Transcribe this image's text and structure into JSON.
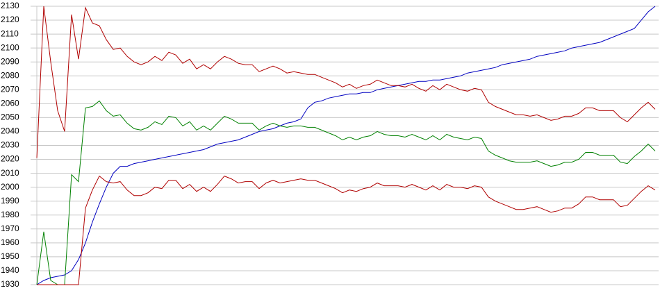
{
  "chart_data": {
    "type": "line",
    "ylim": [
      1930,
      2130
    ],
    "yticks": [
      1930,
      1940,
      1950,
      1960,
      1970,
      1980,
      1990,
      2000,
      2010,
      2020,
      2030,
      2040,
      2050,
      2060,
      2070,
      2080,
      2090,
      2100,
      2110,
      2120,
      2130
    ],
    "grid": true,
    "series": [
      {
        "color": "#0000c0",
        "values": [
          1930,
          1933,
          1935,
          1936,
          1937,
          1940,
          1948,
          1960,
          1975,
          1988,
          2000,
          2010,
          2015,
          2015,
          2017,
          2018,
          2019,
          2020,
          2021,
          2022,
          2023,
          2024,
          2025,
          2026,
          2027,
          2029,
          2031,
          2032,
          2033,
          2034,
          2036,
          2038,
          2040,
          2041,
          2042,
          2044,
          2046,
          2047,
          2049,
          2057,
          2061,
          2062,
          2064,
          2065,
          2066,
          2067,
          2067,
          2068,
          2068,
          2070,
          2071,
          2072,
          2073,
          2074,
          2075,
          2076,
          2076,
          2077,
          2077,
          2078,
          2079,
          2080,
          2082,
          2083,
          2084,
          2085,
          2086,
          2088,
          2089,
          2090,
          2091,
          2092,
          2094,
          2095,
          2096,
          2097,
          2098,
          2100,
          2101,
          2102,
          2103,
          2104,
          2106,
          2108,
          2110,
          2112,
          2114,
          2120,
          2126,
          2130
        ]
      },
      {
        "color": "#b00000",
        "values": [
          2021,
          2130,
          2090,
          2055,
          2040,
          2124,
          2092,
          2129,
          2118,
          2116,
          2106,
          2099,
          2100,
          2094,
          2090,
          2088,
          2090,
          2094,
          2091,
          2097,
          2095,
          2089,
          2092,
          2085,
          2088,
          2085,
          2090,
          2094,
          2092,
          2089,
          2088,
          2088,
          2083,
          2085,
          2087,
          2085,
          2082,
          2083,
          2082,
          2081,
          2081,
          2079,
          2077,
          2075,
          2072,
          2074,
          2071,
          2073,
          2074,
          2077,
          2075,
          2073,
          2073,
          2072,
          2074,
          2071,
          2069,
          2073,
          2070,
          2074,
          2072,
          2070,
          2069,
          2071,
          2070,
          2061,
          2058,
          2056,
          2054,
          2052,
          2052,
          2051,
          2052,
          2050,
          2048,
          2049,
          2051,
          2051,
          2053,
          2057,
          2057,
          2055,
          2055,
          2055,
          2050,
          2047,
          2052,
          2057,
          2061,
          2056
        ]
      },
      {
        "color": "#008000",
        "values": [
          1930,
          1968,
          1933,
          1930,
          1930,
          2009,
          2004,
          2057,
          2058,
          2062,
          2055,
          2051,
          2052,
          2046,
          2042,
          2041,
          2043,
          2047,
          2045,
          2051,
          2050,
          2044,
          2047,
          2041,
          2044,
          2041,
          2046,
          2051,
          2049,
          2046,
          2046,
          2046,
          2041,
          2044,
          2046,
          2044,
          2043,
          2044,
          2044,
          2043,
          2043,
          2041,
          2039,
          2037,
          2034,
          2036,
          2034,
          2036,
          2037,
          2040,
          2038,
          2037,
          2037,
          2036,
          2038,
          2036,
          2034,
          2037,
          2034,
          2038,
          2036,
          2035,
          2034,
          2036,
          2035,
          2026,
          2023,
          2021,
          2019,
          2018,
          2018,
          2018,
          2019,
          2017,
          2015,
          2016,
          2018,
          2018,
          2020,
          2025,
          2025,
          2023,
          2023,
          2023,
          2018,
          2017,
          2022,
          2026,
          2031,
          2026
        ]
      },
      {
        "color": "#b00000",
        "values": [
          1930,
          1930,
          1930,
          1930,
          1930,
          1930,
          1930,
          1985,
          1998,
          2008,
          2004,
          2003,
          2004,
          1998,
          1994,
          1994,
          1996,
          2000,
          1999,
          2005,
          2005,
          1999,
          2002,
          1997,
          2000,
          1997,
          2002,
          2008,
          2006,
          2003,
          2004,
          2004,
          1999,
          2003,
          2005,
          2003,
          2004,
          2005,
          2006,
          2005,
          2005,
          2003,
          2001,
          1999,
          1996,
          1998,
          1997,
          1999,
          2000,
          2003,
          2001,
          2001,
          2001,
          2000,
          2002,
          2000,
          1998,
          2001,
          1998,
          2002,
          2000,
          2000,
          1999,
          2001,
          2000,
          1993,
          1990,
          1988,
          1986,
          1984,
          1984,
          1985,
          1986,
          1984,
          1982,
          1983,
          1985,
          1985,
          1988,
          1993,
          1993,
          1991,
          1991,
          1991,
          1986,
          1987,
          1992,
          1997,
          2001,
          1998
        ]
      }
    ]
  }
}
